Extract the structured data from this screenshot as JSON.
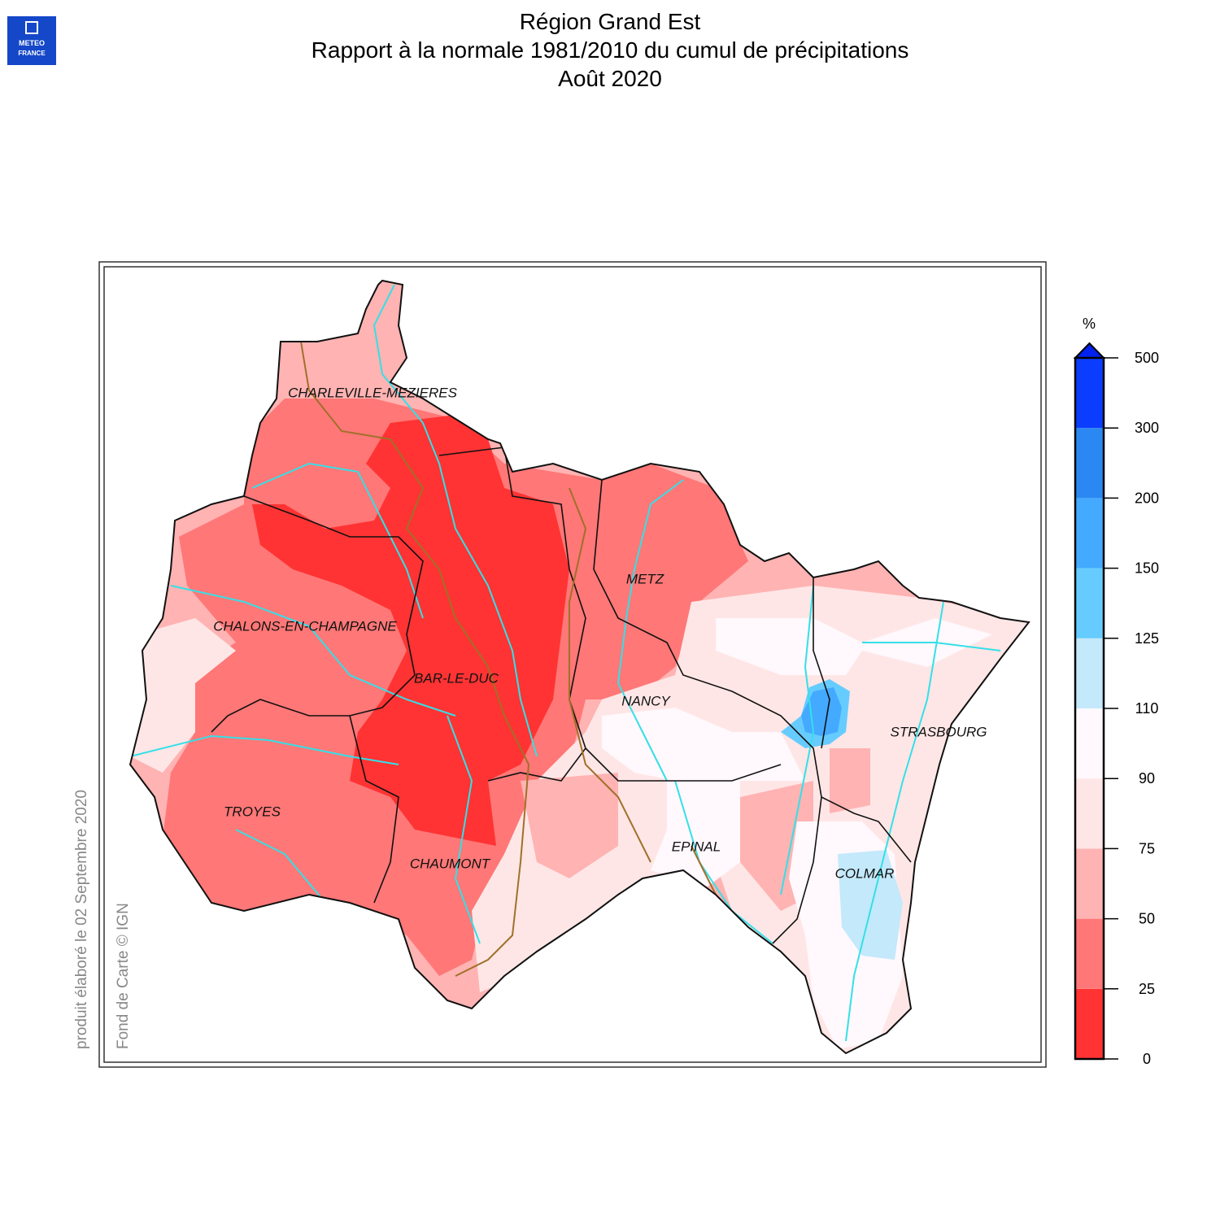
{
  "header": {
    "title": [
      "Région Grand Est",
      "Rapport à la normale 1981/2010 du cumul de précipitations",
      "Août 2020"
    ]
  },
  "logo": {
    "lines": [
      "METEO",
      "FRANCE"
    ]
  },
  "legend": {
    "unit": "%",
    "ticks": [
      0,
      25,
      50,
      75,
      90,
      110,
      125,
      150,
      200,
      300,
      500
    ],
    "colors": [
      "#ff3333",
      "#ff7777",
      "#ffb3b3",
      "#ffe6e6",
      "#fff8fc",
      "#c3e9fb",
      "#66ccff",
      "#44aaff",
      "#2b88f2",
      "#0b3dff"
    ],
    "arrow_color": "#0022ee"
  },
  "cities": [
    "CHARLEVILLE-MEZIERES",
    "METZ",
    "CHALONS-EN-CHAMPAGNE",
    "BAR-LE-DUC",
    "NANCY",
    "STRASBOURG",
    "TROYES",
    "EPINAL",
    "COLMAR",
    "CHAUMONT"
  ],
  "credits": [
    "produit élaboré le 02 Septembre 2020",
    "Fond de Carte © IGN"
  ]
}
